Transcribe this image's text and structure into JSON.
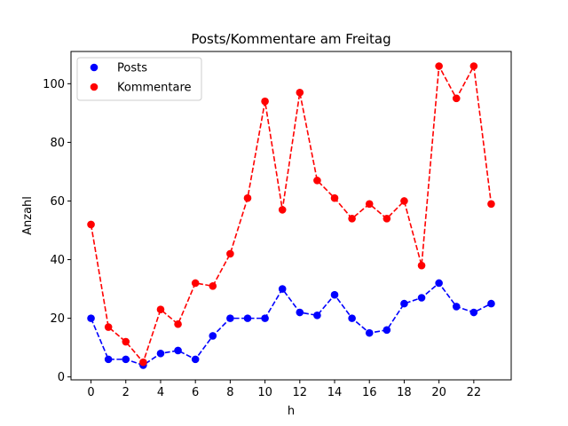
{
  "chart_data": {
    "type": "line",
    "title": "Posts/Kommentare am Freitag",
    "xlabel": "h",
    "ylabel": "Anzahl",
    "x": [
      0,
      1,
      2,
      3,
      4,
      5,
      6,
      7,
      8,
      9,
      10,
      11,
      12,
      13,
      14,
      15,
      16,
      17,
      18,
      19,
      20,
      21,
      22,
      23
    ],
    "xlim": [
      -1.15,
      24.15
    ],
    "ylim": [
      -1,
      111
    ],
    "xticks": [
      0,
      2,
      4,
      6,
      8,
      10,
      12,
      14,
      16,
      18,
      20,
      22
    ],
    "yticks": [
      0,
      20,
      40,
      60,
      80,
      100
    ],
    "grid": false,
    "legend_position": "top-left",
    "series": [
      {
        "name": "Posts",
        "color": "#0000ff",
        "marker": "circle",
        "linestyle": "dashed",
        "values": [
          20,
          6,
          6,
          4,
          8,
          9,
          6,
          14,
          20,
          20,
          20,
          30,
          22,
          21,
          28,
          20,
          15,
          16,
          25,
          27,
          32,
          24,
          22,
          25
        ]
      },
      {
        "name": "Kommentare",
        "color": "#ff0000",
        "marker": "circle",
        "linestyle": "dashed",
        "values": [
          52,
          17,
          12,
          5,
          23,
          18,
          32,
          31,
          42,
          61,
          94,
          57,
          97,
          67,
          61,
          54,
          59,
          54,
          60,
          38,
          106,
          95,
          106,
          59
        ]
      }
    ]
  }
}
